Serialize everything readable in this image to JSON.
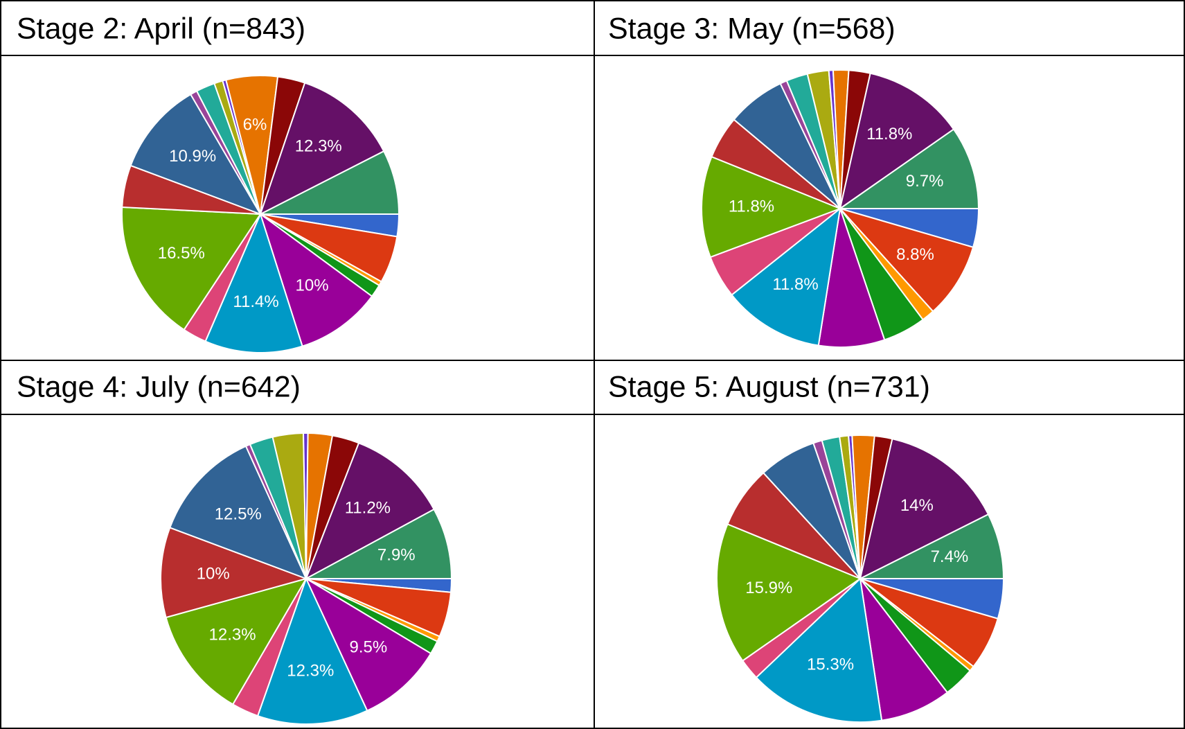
{
  "chart_data": [
    {
      "type": "pie",
      "title": "Stage 2: April (n=843)",
      "values": [
        2.6,
        5.5,
        0.5,
        1.5,
        10,
        11.4,
        2.8,
        16.5,
        4.9,
        10.9,
        0.8,
        2.2,
        1,
        0.4,
        6,
        3.2,
        12.3,
        7.5
      ],
      "value_labels": [
        null,
        null,
        null,
        null,
        "10%",
        "11.4%",
        null,
        "16.5%",
        null,
        "10.9%",
        null,
        null,
        null,
        null,
        "6%",
        null,
        "12.3%",
        null
      ],
      "colors": [
        "#3366cc",
        "#dc3912",
        "#ff9900",
        "#109618",
        "#990099",
        "#0099c6",
        "#dd4477",
        "#66aa00",
        "#b82e2e",
        "#316395",
        "#994499",
        "#22aa99",
        "#aaaa11",
        "#6633cc",
        "#e67300",
        "#8b0707",
        "#651067",
        "#329262"
      ]
    },
    {
      "type": "pie",
      "title": "Stage 3: May (n=568)",
      "values": [
        4.5,
        8.8,
        1.5,
        5,
        7.7,
        11.8,
        5,
        11.8,
        5,
        6.8,
        0.8,
        2.5,
        2.5,
        0.5,
        1.8,
        2.5,
        11.8,
        9.7
      ],
      "value_labels": [
        null,
        "8.8%",
        null,
        null,
        null,
        "11.8%",
        null,
        "11.8%",
        null,
        null,
        null,
        null,
        null,
        null,
        null,
        null,
        "11.8%",
        "9.7%"
      ],
      "colors": [
        "#3366cc",
        "#dc3912",
        "#ff9900",
        "#109618",
        "#990099",
        "#0099c6",
        "#dd4477",
        "#66aa00",
        "#b82e2e",
        "#316395",
        "#994499",
        "#22aa99",
        "#aaaa11",
        "#6633cc",
        "#e67300",
        "#8b0707",
        "#651067",
        "#329262"
      ]
    },
    {
      "type": "pie",
      "title": "Stage 4: July  (n=642)",
      "values": [
        1.5,
        5,
        0.6,
        1.5,
        9.5,
        12.3,
        3,
        12.3,
        10,
        12.5,
        0.5,
        2.6,
        3.4,
        0.5,
        2.7,
        3,
        11.2,
        7.9
      ],
      "value_labels": [
        null,
        null,
        null,
        null,
        "9.5%",
        "12.3%",
        null,
        "12.3%",
        "10%",
        "12.5%",
        null,
        null,
        null,
        null,
        null,
        null,
        "11.2%",
        "7.9%"
      ],
      "colors": [
        "#3366cc",
        "#dc3912",
        "#ff9900",
        "#109618",
        "#990099",
        "#0099c6",
        "#dd4477",
        "#66aa00",
        "#b82e2e",
        "#316395",
        "#994499",
        "#22aa99",
        "#aaaa11",
        "#6633cc",
        "#e67300",
        "#8b0707",
        "#651067",
        "#329262"
      ]
    },
    {
      "type": "pie",
      "title": "Stage 5: August (n=731)",
      "values": [
        4.5,
        6,
        0.6,
        3.5,
        8,
        15.3,
        2.4,
        15.9,
        7,
        6.5,
        1,
        2,
        1,
        0.4,
        2.5,
        2,
        14,
        7.4
      ],
      "value_labels": [
        null,
        null,
        null,
        null,
        null,
        "15.3%",
        null,
        "15.9%",
        null,
        null,
        null,
        null,
        null,
        null,
        null,
        null,
        "14%",
        "7.4%"
      ],
      "colors": [
        "#3366cc",
        "#dc3912",
        "#ff9900",
        "#109618",
        "#990099",
        "#0099c6",
        "#dd4477",
        "#66aa00",
        "#b82e2e",
        "#316395",
        "#994499",
        "#22aa99",
        "#aaaa11",
        "#6633cc",
        "#e67300",
        "#8b0707",
        "#651067",
        "#329262"
      ]
    }
  ]
}
